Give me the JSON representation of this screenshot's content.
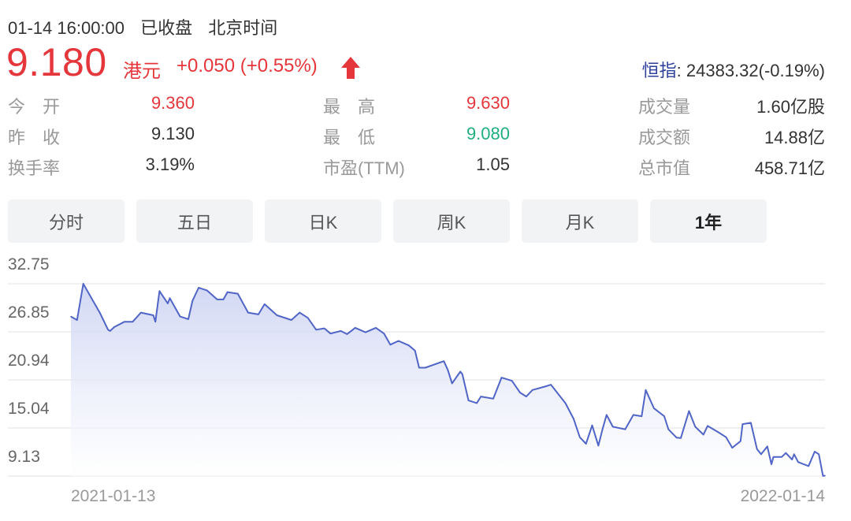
{
  "header": {
    "time": "01-14 16:00:00",
    "status": "已收盘",
    "timezone": "北京时间",
    "price": "9.180",
    "currency": "港元",
    "change": "+0.050 (+0.55%)",
    "direction_icon": "arrow-up-icon",
    "index_label": "恒指",
    "index_value": ": 24383.32(-0.19%)"
  },
  "colors": {
    "up": "#e5363b",
    "down": "#1fae7f",
    "line": "#5065c6",
    "index_label": "#2f3f9a"
  },
  "stats": [
    [
      {
        "label": "今　开",
        "value": "9.360",
        "tone": "up"
      },
      {
        "label": "最　高",
        "value": "9.630",
        "tone": "up"
      },
      {
        "label": "成交量",
        "value": "1.60亿股"
      }
    ],
    [
      {
        "label": "昨　收",
        "value": "9.130"
      },
      {
        "label": "最　低",
        "value": "9.080",
        "tone": "down"
      },
      {
        "label": "成交额",
        "value": "14.88亿"
      }
    ],
    [
      {
        "label": "换手率",
        "value": "3.19%"
      },
      {
        "label": "市盈(TTM)",
        "value": "1.05"
      },
      {
        "label": "总市值",
        "value": "458.71亿"
      }
    ]
  ],
  "tabs": [
    {
      "label": "分时"
    },
    {
      "label": "五日"
    },
    {
      "label": "日K"
    },
    {
      "label": "周K"
    },
    {
      "label": "月K"
    },
    {
      "label": "1年",
      "active": true
    }
  ],
  "chart_data": {
    "type": "area",
    "y_ticks": [
      "32.75",
      "26.85",
      "20.94",
      "15.04",
      "9.13"
    ],
    "ylim": [
      9.13,
      32.75
    ],
    "x_ticks": [
      "2021-01-13",
      "2022-01-14"
    ],
    "xlim": [
      "2021-01-13",
      "2022-01-14"
    ],
    "grid": true,
    "dates": [
      "2021-01-13",
      "2021-01-16",
      "2021-01-19",
      "2021-01-23",
      "2021-01-27",
      "2021-01-31",
      "2021-02-01",
      "2021-02-03",
      "2021-02-08",
      "2021-02-12",
      "2021-02-16",
      "2021-02-22",
      "2021-02-23",
      "2021-02-25",
      "2021-03-01",
      "2021-03-02",
      "2021-03-07",
      "2021-03-11",
      "2021-03-13",
      "2021-03-16",
      "2021-03-20",
      "2021-03-25",
      "2021-03-28",
      "2021-03-30",
      "2021-04-04",
      "2021-04-09",
      "2021-04-14",
      "2021-04-17",
      "2021-04-23",
      "2021-04-30",
      "2021-05-04",
      "2021-05-08",
      "2021-05-12",
      "2021-05-16",
      "2021-05-19",
      "2021-05-24",
      "2021-05-27",
      "2021-05-31",
      "2021-06-05",
      "2021-06-10",
      "2021-06-14",
      "2021-06-17",
      "2021-06-21",
      "2021-06-26",
      "2021-06-29",
      "2021-07-01",
      "2021-07-04",
      "2021-07-13",
      "2021-07-15",
      "2021-07-17",
      "2021-07-21",
      "2021-07-22",
      "2021-07-25",
      "2021-07-29",
      "2021-07-31",
      "2021-08-06",
      "2021-08-10",
      "2021-08-15",
      "2021-08-19",
      "2021-08-22",
      "2021-08-25",
      "2021-08-31",
      "2021-09-03",
      "2021-09-10",
      "2021-09-14",
      "2021-09-17",
      "2021-09-20",
      "2021-09-23",
      "2021-09-26",
      "2021-09-28",
      "2021-09-30",
      "2021-10-03",
      "2021-10-09",
      "2021-10-13",
      "2021-10-17",
      "2021-10-19",
      "2021-10-23",
      "2021-10-28",
      "2021-10-30",
      "2021-11-03",
      "2021-11-05",
      "2021-11-09",
      "2021-11-12",
      "2021-11-16",
      "2021-11-18",
      "2021-11-23",
      "2021-11-27",
      "2021-11-30",
      "2021-12-04",
      "2021-12-05",
      "2021-12-09",
      "2021-12-12",
      "2021-12-14",
      "2021-12-17",
      "2021-12-19",
      "2021-12-20",
      "2021-12-24",
      "2021-12-26",
      "2021-12-29",
      "2021-12-30",
      "2022-01-01",
      "2022-01-06",
      "2022-01-09",
      "2022-01-11",
      "2022-01-13",
      "2022-01-14"
    ],
    "values": [
      28.72,
      28.3,
      32.75,
      30.98,
      29.21,
      27.11,
      26.95,
      27.43,
      28.08,
      28.08,
      29.21,
      28.88,
      28.08,
      31.85,
      30.33,
      30.98,
      28.72,
      28.4,
      30.66,
      32.27,
      31.94,
      30.82,
      30.82,
      31.72,
      31.53,
      29.21,
      28.98,
      30.24,
      28.88,
      28.3,
      29.21,
      28.56,
      27.11,
      27.27,
      26.63,
      26.95,
      26.56,
      27.34,
      26.79,
      27.34,
      26.63,
      25.27,
      25.73,
      25.18,
      24.53,
      22.44,
      22.44,
      23.24,
      22.12,
      20.51,
      21.96,
      21.63,
      18.41,
      18.09,
      18.9,
      18.64,
      21.22,
      20.83,
      19.38,
      18.9,
      19.7,
      20.12,
      20.35,
      18.09,
      16.16,
      13.9,
      13.1,
      15.35,
      12.87,
      14.87,
      16.64,
      15.19,
      14.87,
      16.64,
      16.48,
      19.7,
      17.45,
      16.48,
      14.87,
      13.84,
      13.8,
      17.12,
      15.19,
      14.22,
      15.29,
      14.55,
      13.9,
      12.61,
      13.42,
      15.51,
      15.67,
      12.45,
      11.81,
      12.77,
      10.58,
      11.48,
      11.48,
      11.97,
      11.16,
      11.81,
      10.84,
      10.36,
      12.13,
      11.81,
      9.16,
      9.18
    ]
  }
}
